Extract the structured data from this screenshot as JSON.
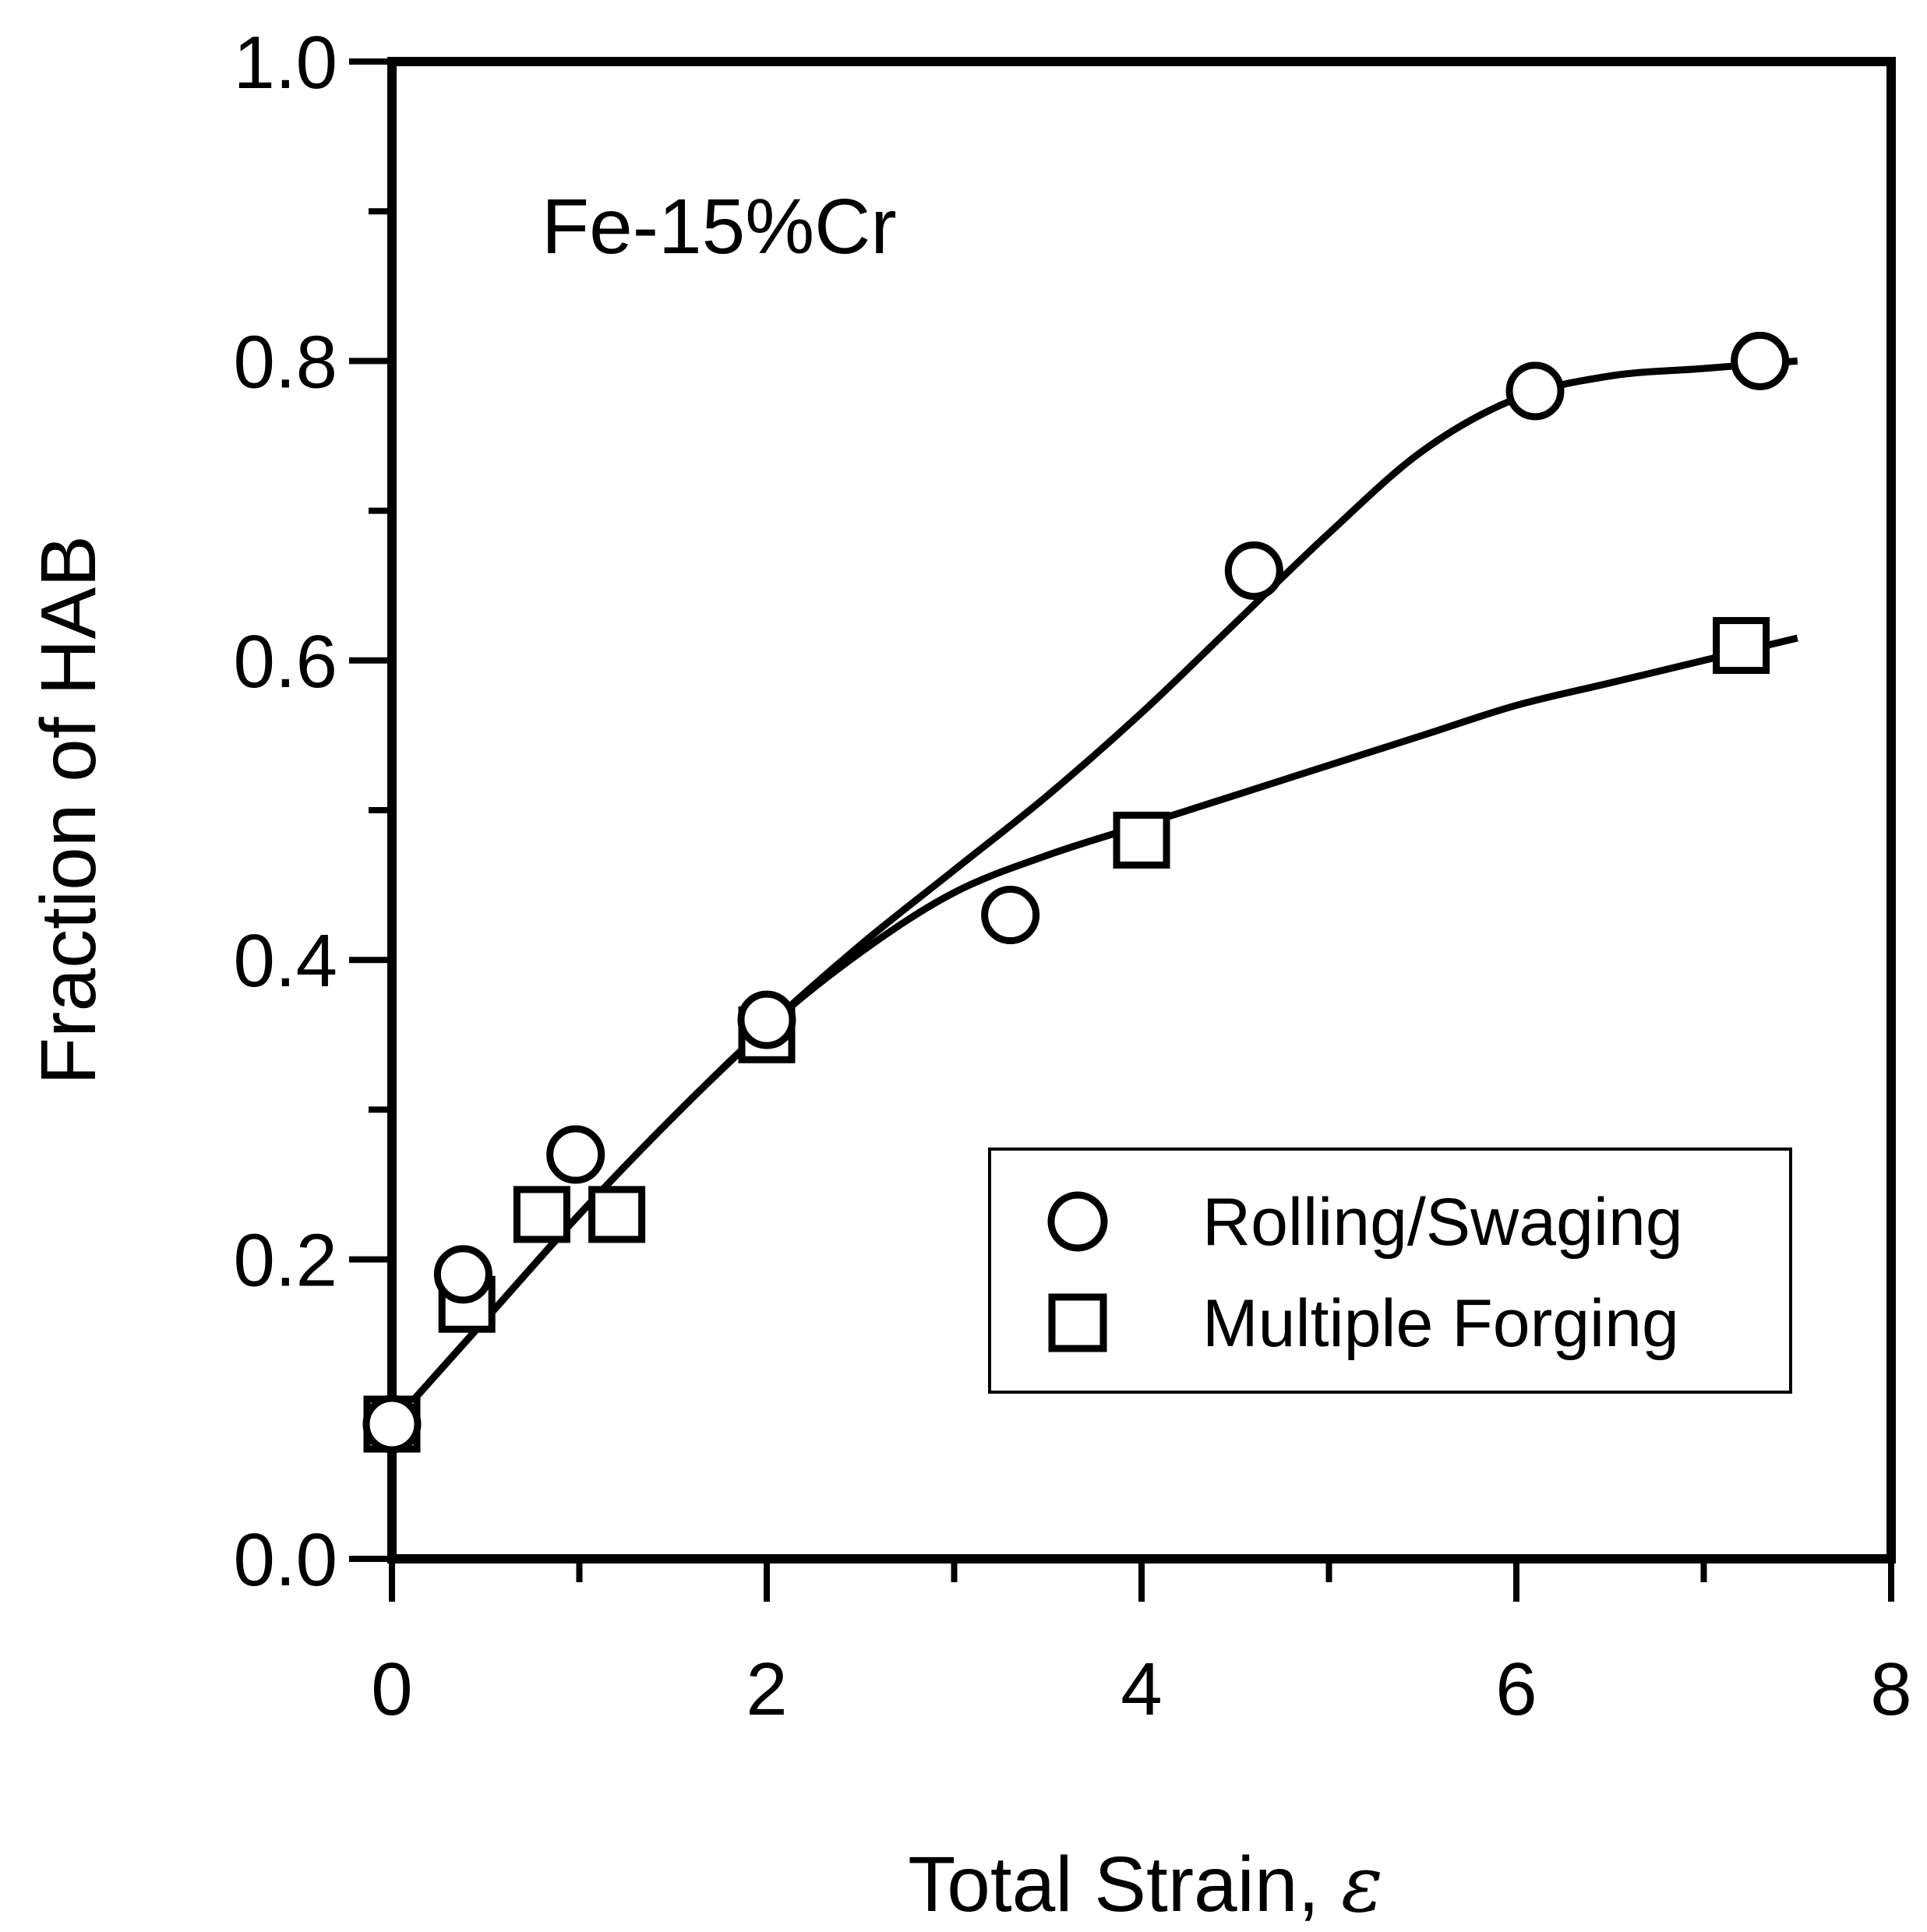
{
  "chart_data": {
    "type": "scatter",
    "title": "",
    "annotation": "Fe-15%Cr",
    "xlabel": "Total Strain, ",
    "xlabel_symbol": "ε",
    "ylabel": "Fraction of HAB",
    "xlim": [
      0,
      8
    ],
    "ylim": [
      0.0,
      1.0
    ],
    "x_ticks": [
      0,
      2,
      4,
      6,
      8
    ],
    "x_tick_labels": [
      "0",
      "2",
      "4",
      "6",
      "8"
    ],
    "x_minor_ticks": [
      1,
      3,
      5,
      7
    ],
    "y_ticks": [
      0.0,
      0.2,
      0.4,
      0.6,
      0.8,
      1.0
    ],
    "y_tick_labels": [
      "0.0",
      "0.2",
      "0.4",
      "0.6",
      "0.8",
      "1.0"
    ],
    "y_minor_ticks": [
      0.1,
      0.3,
      0.5,
      0.7,
      0.9
    ],
    "grid": false,
    "legend_position": "bottom-right",
    "series": [
      {
        "name": "Rolling/Swaging",
        "marker": "circle",
        "x": [
          0,
          0.38,
          0.98,
          2.0,
          3.3,
          4.6,
          6.1,
          7.3
        ],
        "y": [
          0.09,
          0.19,
          0.27,
          0.36,
          0.43,
          0.66,
          0.78,
          0.8
        ],
        "curve_x": [
          0,
          0.5,
          1.0,
          1.5,
          2.0,
          2.5,
          3.0,
          3.5,
          4.0,
          4.5,
          5.0,
          5.5,
          6.0,
          6.5,
          7.0,
          7.5
        ],
        "curve_y": [
          0.09,
          0.16,
          0.23,
          0.295,
          0.355,
          0.41,
          0.46,
          0.51,
          0.565,
          0.625,
          0.685,
          0.74,
          0.775,
          0.79,
          0.795,
          0.8
        ]
      },
      {
        "name": "Multiple Forging",
        "marker": "square",
        "x": [
          0,
          0.4,
          0.8,
          1.2,
          2.0,
          4.0,
          7.2
        ],
        "y": [
          0.09,
          0.17,
          0.23,
          0.23,
          0.35,
          0.48,
          0.61
        ],
        "curve_x": [
          0,
          0.5,
          1.0,
          1.5,
          2.0,
          2.5,
          3.0,
          3.5,
          4.0,
          4.5,
          5.0,
          5.5,
          6.0,
          6.5,
          7.0,
          7.5
        ],
        "curve_y": [
          0.09,
          0.16,
          0.23,
          0.295,
          0.355,
          0.405,
          0.445,
          0.47,
          0.49,
          0.51,
          0.53,
          0.55,
          0.57,
          0.585,
          0.6,
          0.615
        ]
      }
    ]
  }
}
